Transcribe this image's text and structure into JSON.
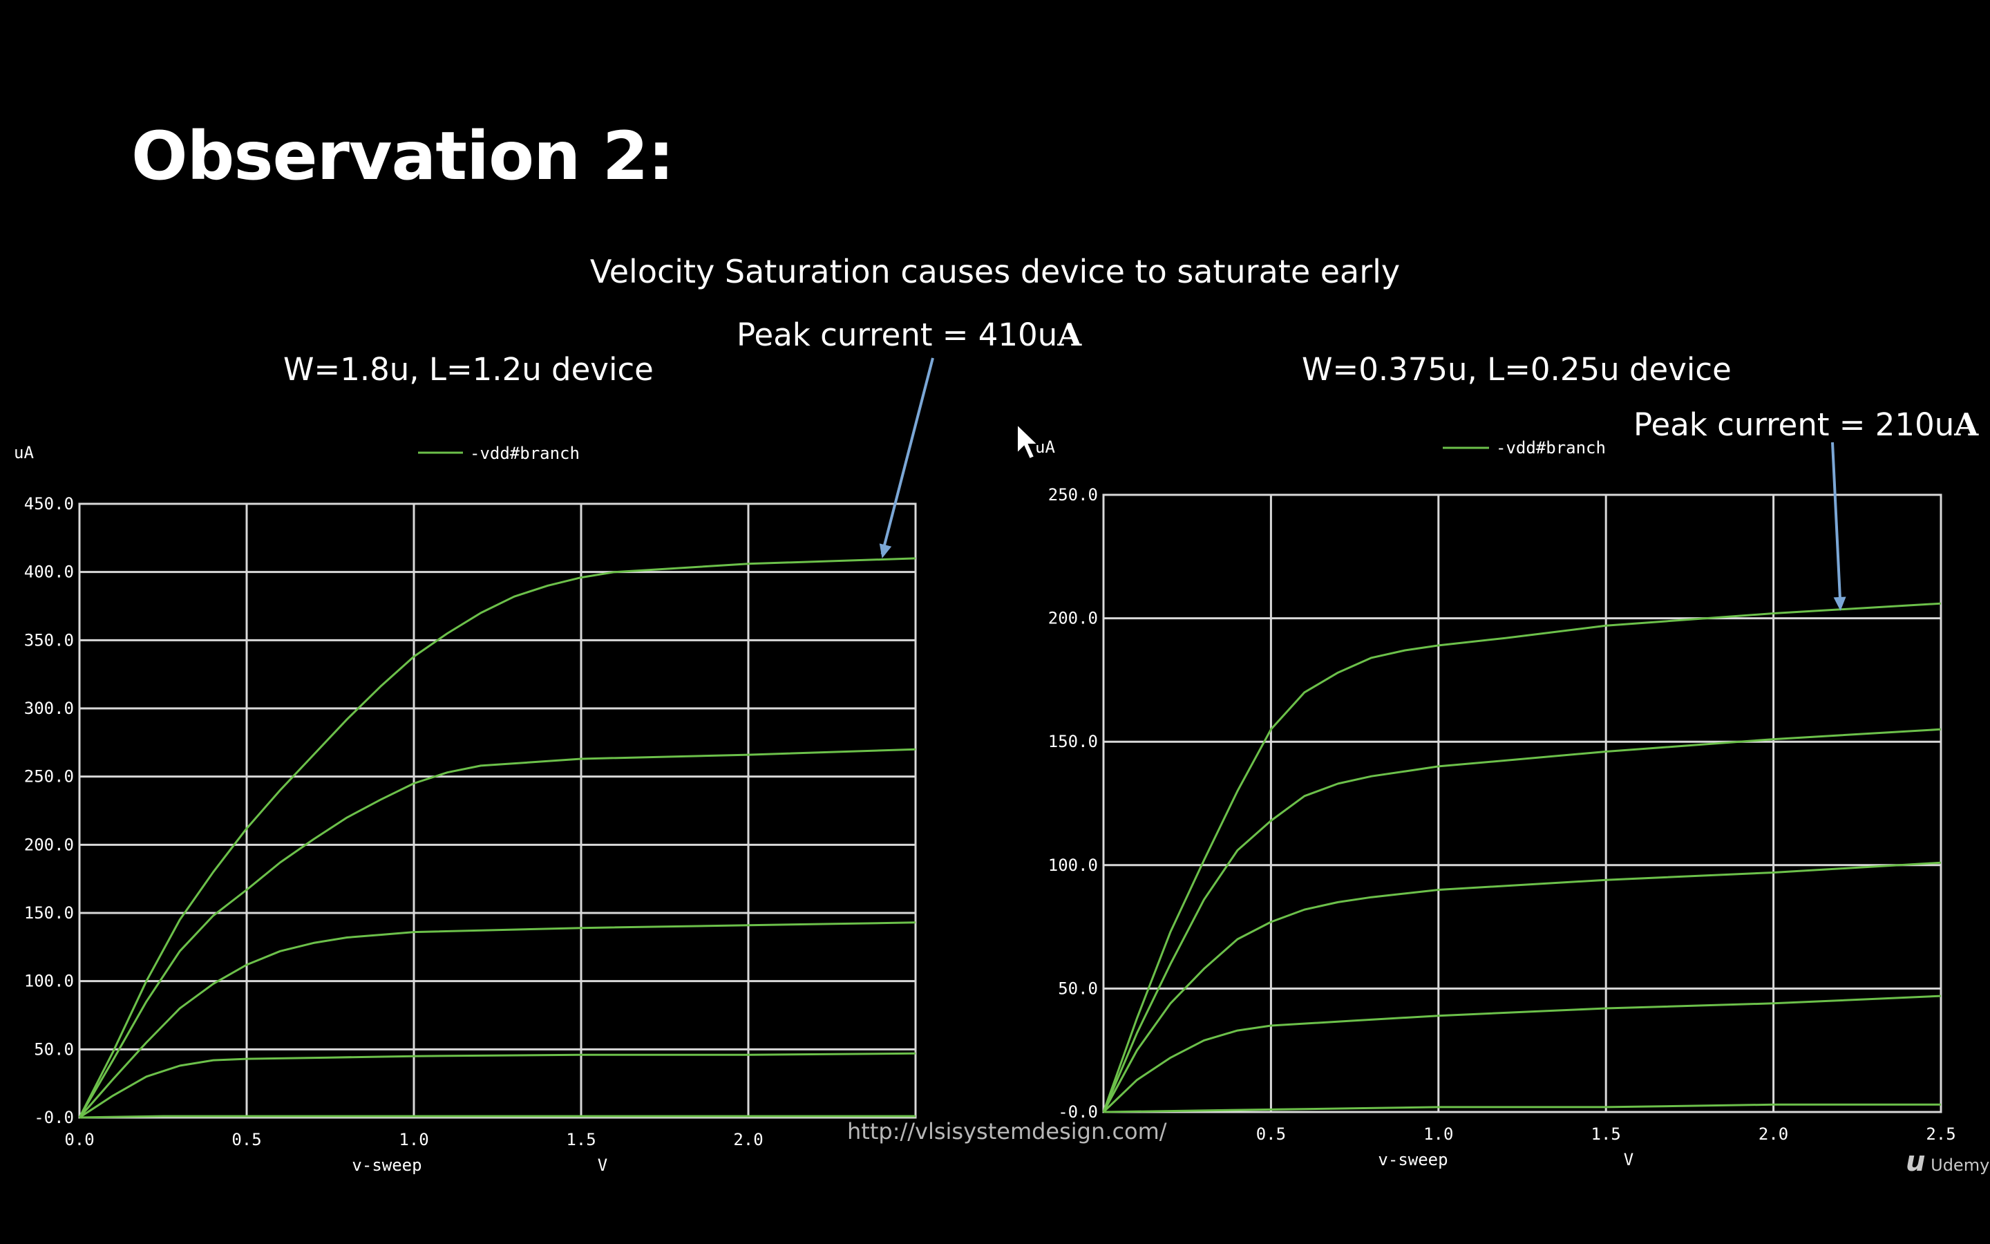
{
  "slide": {
    "title": "Observation 2:",
    "headline": "Velocity Saturation causes device to saturate early",
    "url": "http://vlsisystemdesign.com/",
    "brand": "Udemy"
  },
  "colors": {
    "curve": "#6cc04a",
    "grid": "#d9d9d9",
    "arrow": "#7ba7d6",
    "text": "#ffffff"
  },
  "charts": [
    {
      "device_label": "W=1.8u, L=1.2u device",
      "peak_label": "Peak current = 410u",
      "peak_unit": "A",
      "peak_value": {
        "x": 2.4,
        "y": 410
      }
    },
    {
      "device_label": "W=0.375u, L=0.25u device",
      "peak_label": "Peak current = 210u",
      "peak_unit": "A",
      "peak_value": {
        "x": 2.2,
        "y": 203
      }
    }
  ],
  "chart_data": [
    {
      "type": "line",
      "ylabel": "uA",
      "xlabel": "v-sweep",
      "xunit": "V",
      "xlim": [
        0,
        2.5
      ],
      "ylim": [
        0,
        450
      ],
      "xticks": [
        0,
        0.5,
        1.0,
        1.5,
        2.0
      ],
      "xtick_labels": [
        "0.0",
        "0.5",
        "1.0",
        "1.5",
        "2.0"
      ],
      "yticks": [
        0,
        50,
        100,
        150,
        200,
        250,
        300,
        350,
        400,
        450
      ],
      "ytick_labels": [
        "-0.0",
        "50.0",
        "100.0",
        "150.0",
        "200.0",
        "250.0",
        "300.0",
        "350.0",
        "400.0",
        "450.0"
      ],
      "legend": "-vdd#branch",
      "series": [
        {
          "x": [
            0,
            0.25,
            0.5,
            0.75,
            1.0,
            1.5,
            2.0,
            2.5
          ],
          "y": [
            0,
            1,
            1,
            1,
            1,
            1,
            1,
            1
          ]
        },
        {
          "x": [
            0,
            0.1,
            0.2,
            0.3,
            0.4,
            0.5,
            0.75,
            1.0,
            1.5,
            2.0,
            2.5
          ],
          "y": [
            0,
            16,
            30,
            38,
            42,
            43,
            44,
            45,
            46,
            46,
            47
          ]
        },
        {
          "x": [
            0,
            0.1,
            0.2,
            0.3,
            0.4,
            0.5,
            0.6,
            0.7,
            0.8,
            0.9,
            1.0,
            1.5,
            2.0,
            2.5
          ],
          "y": [
            0,
            28,
            55,
            80,
            98,
            112,
            122,
            128,
            132,
            134,
            136,
            139,
            141,
            143
          ]
        },
        {
          "x": [
            0,
            0.1,
            0.2,
            0.3,
            0.4,
            0.5,
            0.6,
            0.7,
            0.8,
            0.9,
            1.0,
            1.1,
            1.2,
            1.5,
            2.0,
            2.5
          ],
          "y": [
            0,
            42,
            85,
            122,
            148,
            167,
            187,
            204,
            220,
            233,
            245,
            253,
            258,
            263,
            266,
            270
          ]
        },
        {
          "x": [
            0,
            0.1,
            0.2,
            0.3,
            0.4,
            0.5,
            0.6,
            0.7,
            0.8,
            0.9,
            1.0,
            1.1,
            1.2,
            1.3,
            1.4,
            1.5,
            1.6,
            2.0,
            2.5
          ],
          "y": [
            0,
            48,
            100,
            145,
            180,
            212,
            240,
            266,
            292,
            316,
            338,
            355,
            370,
            382,
            390,
            396,
            400,
            406,
            410
          ]
        }
      ]
    },
    {
      "type": "line",
      "ylabel": "uA",
      "xlabel": "v-sweep",
      "xunit": "V",
      "xlim": [
        0,
        2.5
      ],
      "ylim": [
        0,
        250
      ],
      "xticks": [
        0.5,
        1.0,
        1.5,
        2.0,
        2.5
      ],
      "xtick_labels": [
        "0.5",
        "1.0",
        "1.5",
        "2.0",
        "2.5"
      ],
      "yticks": [
        0,
        50,
        100,
        150,
        200,
        250
      ],
      "ytick_labels": [
        "-0.0",
        "50.0",
        "100.0",
        "150.0",
        "200.0",
        "250.0"
      ],
      "legend": "-vdd#branch",
      "series": [
        {
          "x": [
            0,
            0.5,
            1.0,
            1.5,
            2.0,
            2.5
          ],
          "y": [
            0,
            1,
            2,
            2,
            3,
            3
          ]
        },
        {
          "x": [
            0,
            0.1,
            0.2,
            0.3,
            0.4,
            0.5,
            0.75,
            1.0,
            1.5,
            2.0,
            2.5
          ],
          "y": [
            0,
            13,
            22,
            29,
            33,
            35,
            37,
            39,
            42,
            44,
            47
          ]
        },
        {
          "x": [
            0,
            0.1,
            0.2,
            0.3,
            0.4,
            0.5,
            0.6,
            0.7,
            0.8,
            1.0,
            1.5,
            2.0,
            2.5
          ],
          "y": [
            0,
            25,
            44,
            58,
            70,
            77,
            82,
            85,
            87,
            90,
            94,
            97,
            101
          ]
        },
        {
          "x": [
            0,
            0.1,
            0.2,
            0.3,
            0.4,
            0.5,
            0.6,
            0.7,
            0.8,
            0.9,
            1.0,
            1.5,
            2.0,
            2.5
          ],
          "y": [
            0,
            32,
            60,
            86,
            106,
            118,
            128,
            133,
            136,
            138,
            140,
            146,
            151,
            155
          ]
        },
        {
          "x": [
            0,
            0.1,
            0.2,
            0.3,
            0.4,
            0.5,
            0.6,
            0.7,
            0.8,
            0.9,
            1.0,
            1.2,
            1.5,
            2.0,
            2.5
          ],
          "y": [
            0,
            38,
            73,
            102,
            130,
            155,
            170,
            178,
            184,
            187,
            189,
            192,
            197,
            202,
            206
          ]
        }
      ]
    }
  ]
}
